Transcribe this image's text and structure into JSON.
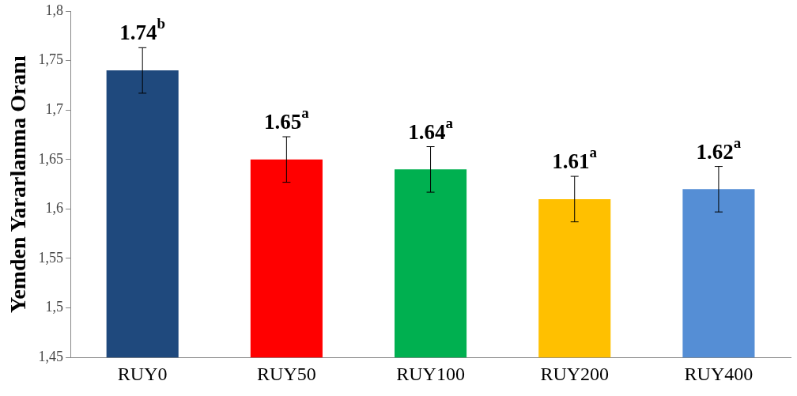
{
  "chart_data": {
    "type": "bar",
    "ylabel": "Yemden Yararlanma Oranı",
    "categories": [
      "RUY0",
      "RUY50",
      "RUY100",
      "RUY200",
      "RUY400"
    ],
    "values": [
      1.74,
      1.65,
      1.64,
      1.61,
      1.62
    ],
    "colors": [
      "#1f497d",
      "#ff0000",
      "#00b050",
      "#ffc000",
      "#558ed5"
    ],
    "errors": [
      0.023,
      0.023,
      0.023,
      0.023,
      0.023
    ],
    "value_labels": [
      "1.74$^{b}$",
      "1.65$^{a}$",
      "1.64$^{a}$",
      "1.61$^{a}$",
      "1.62$^{a}$"
    ],
    "ylim": [
      1.45,
      1.8
    ],
    "yticks": [
      {
        "value": 1.45,
        "label": "1,45"
      },
      {
        "value": 1.5,
        "label": "1,5"
      },
      {
        "value": 1.55,
        "label": "1,55"
      },
      {
        "value": 1.6,
        "label": "1,6"
      },
      {
        "value": 1.65,
        "label": "1,65"
      },
      {
        "value": 1.7,
        "label": "1,7"
      },
      {
        "value": 1.75,
        "label": "1,75"
      },
      {
        "value": 1.8,
        "label": "1,8"
      }
    ],
    "grid": false,
    "legend": false
  }
}
